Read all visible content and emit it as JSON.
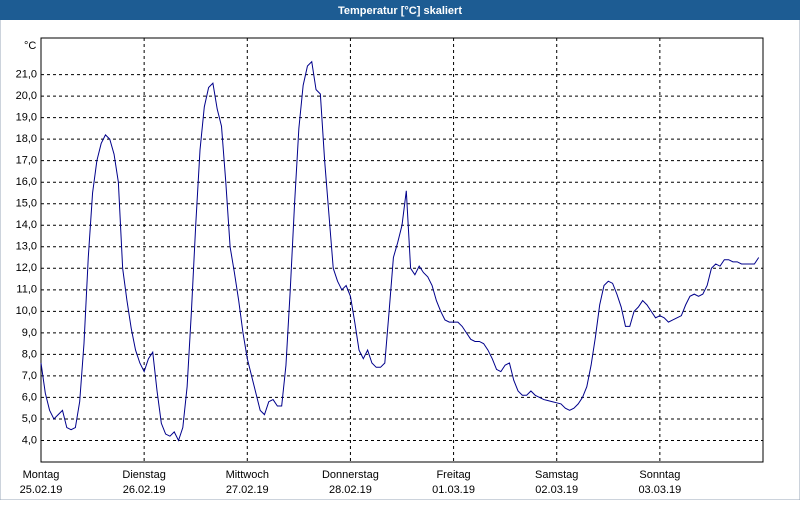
{
  "chart_data": {
    "type": "line",
    "title": "Temperatur [°C] skaliert",
    "y_unit": "°C",
    "xlim": [
      0,
      168
    ],
    "ylim": [
      3,
      22.7
    ],
    "xticks": [
      {
        "value": 0,
        "label": "Montag",
        "date": "25.02.19"
      },
      {
        "value": 24,
        "label": "Dienstag",
        "date": "26.02.19"
      },
      {
        "value": 48,
        "label": "Mittwoch",
        "date": "27.02.19"
      },
      {
        "value": 72,
        "label": "Donnerstag",
        "date": "28.02.19"
      },
      {
        "value": 96,
        "label": "Freitag",
        "date": "01.03.19"
      },
      {
        "value": 120,
        "label": "Samstag",
        "date": "02.03.19"
      },
      {
        "value": 144,
        "label": "Sonntag",
        "date": "03.03.19"
      }
    ],
    "yticks": [
      {
        "value": 4,
        "label": "4,0"
      },
      {
        "value": 5,
        "label": "5,0"
      },
      {
        "value": 6,
        "label": "6,0"
      },
      {
        "value": 7,
        "label": "7,0"
      },
      {
        "value": 8,
        "label": "8,0"
      },
      {
        "value": 9,
        "label": "9,0"
      },
      {
        "value": 10,
        "label": "10,0"
      },
      {
        "value": 11,
        "label": "11,0"
      },
      {
        "value": 12,
        "label": "12,0"
      },
      {
        "value": 13,
        "label": "13,0"
      },
      {
        "value": 14,
        "label": "14,0"
      },
      {
        "value": 15,
        "label": "15,0"
      },
      {
        "value": 16,
        "label": "16,0"
      },
      {
        "value": 17,
        "label": "17,0"
      },
      {
        "value": 18,
        "label": "18,0"
      },
      {
        "value": 19,
        "label": "19,0"
      },
      {
        "value": 20,
        "label": "20,0"
      },
      {
        "value": 21,
        "label": "21,0"
      }
    ],
    "grid": true,
    "x": [
      0,
      1,
      2,
      3,
      4,
      5,
      6,
      7,
      8,
      9,
      10,
      11,
      12,
      13,
      14,
      15,
      16,
      17,
      18,
      19,
      20,
      21,
      22,
      23,
      24,
      25,
      26,
      27,
      28,
      29,
      30,
      31,
      32,
      33,
      34,
      35,
      36,
      37,
      38,
      39,
      40,
      41,
      42,
      43,
      44,
      45,
      46,
      47,
      48,
      49,
      50,
      51,
      52,
      53,
      54,
      55,
      56,
      57,
      58,
      59,
      60,
      61,
      62,
      63,
      64,
      65,
      66,
      67,
      68,
      69,
      70,
      71,
      72,
      73,
      74,
      75,
      76,
      77,
      78,
      79,
      80,
      81,
      82,
      83,
      84,
      85,
      86,
      87,
      88,
      89,
      90,
      91,
      92,
      93,
      94,
      95,
      96,
      97,
      98,
      99,
      100,
      101,
      102,
      103,
      104,
      105,
      106,
      107,
      108,
      109,
      110,
      111,
      112,
      113,
      114,
      115,
      116,
      117,
      118,
      119,
      120,
      121,
      122,
      123,
      124,
      125,
      126,
      127,
      128,
      129,
      130,
      131,
      132,
      133,
      134,
      135,
      136,
      137,
      138,
      139,
      140,
      141,
      142,
      143,
      144,
      145,
      146,
      147,
      148,
      149,
      150,
      151,
      152,
      153,
      154,
      155,
      156,
      157,
      158,
      159,
      160,
      161,
      162,
      163,
      164,
      165,
      166,
      167
    ],
    "series": [
      {
        "color": "#00008b",
        "values": [
          7.6,
          6.2,
          5.4,
          5.0,
          5.2,
          5.4,
          4.6,
          4.5,
          4.6,
          5.8,
          8.5,
          12.5,
          15.5,
          17.0,
          17.8,
          18.2,
          18.0,
          17.3,
          16.0,
          12.0,
          10.5,
          9.2,
          8.2,
          7.6,
          7.2,
          7.8,
          8.1,
          6.3,
          4.8,
          4.3,
          4.2,
          4.4,
          4.0,
          4.6,
          6.5,
          10.0,
          14.0,
          17.5,
          19.5,
          20.4,
          20.6,
          19.4,
          18.6,
          16.0,
          13.0,
          11.8,
          10.5,
          9.0,
          7.8,
          7.0,
          6.2,
          5.4,
          5.2,
          5.8,
          5.9,
          5.6,
          5.6,
          7.5,
          11.0,
          15.0,
          18.5,
          20.5,
          21.4,
          21.6,
          20.3,
          20.1,
          17.0,
          14.5,
          12.0,
          11.4,
          11.0,
          11.2,
          10.7,
          9.5,
          8.2,
          7.8,
          8.2,
          7.6,
          7.4,
          7.4,
          7.6,
          10.0,
          12.5,
          13.2,
          14.0,
          15.6,
          12.0,
          11.7,
          12.1,
          11.8,
          11.6,
          11.2,
          10.5,
          10.0,
          9.6,
          9.5,
          9.5,
          9.5,
          9.3,
          9.0,
          8.7,
          8.6,
          8.6,
          8.5,
          8.2,
          7.8,
          7.3,
          7.2,
          7.5,
          7.6,
          6.8,
          6.3,
          6.1,
          6.1,
          6.3,
          6.1,
          6.0,
          5.9,
          5.85,
          5.8,
          5.75,
          5.7,
          5.5,
          5.4,
          5.5,
          5.7,
          6.0,
          6.5,
          7.5,
          8.8,
          10.3,
          11.2,
          11.4,
          11.3,
          10.8,
          10.2,
          9.3,
          9.3,
          10.0,
          10.2,
          10.5,
          10.3,
          10.0,
          9.7,
          9.8,
          9.7,
          9.5,
          9.6,
          9.7,
          9.8,
          10.3,
          10.7,
          10.8,
          10.7,
          10.8,
          11.2,
          12.0,
          12.2,
          12.1,
          12.4,
          12.4,
          12.3,
          12.3,
          12.2,
          12.2,
          12.2,
          12.2,
          12.5
        ]
      }
    ]
  }
}
